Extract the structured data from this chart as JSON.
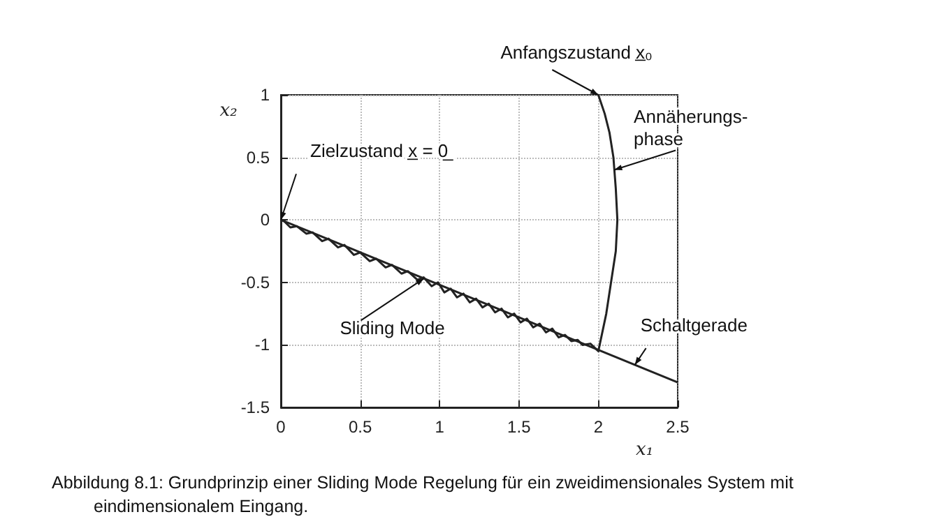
{
  "chart_data": {
    "type": "line",
    "xlabel": "x₁",
    "ylabel": "x₂",
    "xlim": [
      0,
      2.5
    ],
    "xticks": [
      0,
      0.5,
      1,
      1.5,
      2,
      2.5
    ],
    "ylim": [
      -1.5,
      1
    ],
    "yticks": [
      -1.5,
      -1,
      -0.5,
      0,
      0.5,
      1
    ],
    "grid": true,
    "marker": "none",
    "line_style": "solid",
    "series": [
      {
        "color": "#222222",
        "x": [
          2,
          2.04,
          2.07,
          2.095,
          2.11,
          2.12,
          2.11,
          2.08,
          2.05,
          2.0,
          1.95,
          1.9,
          1.87,
          1.83,
          1.79,
          1.75,
          1.71,
          1.67,
          1.63,
          1.59,
          1.55,
          1.51,
          1.47,
          1.43,
          1.39,
          1.35,
          1.31,
          1.27,
          1.23,
          1.19,
          1.15,
          1.11,
          1.07,
          1.03,
          0.99,
          0.95,
          0.9,
          0.86,
          0.8,
          0.76,
          0.7,
          0.66,
          0.6,
          0.56,
          0.5,
          0.46,
          0.4,
          0.36,
          0.3,
          0.26,
          0.2,
          0.16,
          0.1,
          0.06,
          0.02,
          0
        ],
        "values": [
          1,
          0.85,
          0.7,
          0.5,
          0.25,
          0,
          -0.25,
          -0.5,
          -0.75,
          -1.05,
          -0.99,
          -1.0,
          -0.96,
          -0.97,
          -0.92,
          -0.94,
          -0.87,
          -0.9,
          -0.83,
          -0.86,
          -0.79,
          -0.82,
          -0.75,
          -0.78,
          -0.71,
          -0.74,
          -0.67,
          -0.7,
          -0.63,
          -0.66,
          -0.59,
          -0.62,
          -0.55,
          -0.58,
          -0.5,
          -0.53,
          -0.46,
          -0.48,
          -0.41,
          -0.43,
          -0.36,
          -0.38,
          -0.31,
          -0.33,
          -0.26,
          -0.28,
          -0.2,
          -0.22,
          -0.15,
          -0.17,
          -0.1,
          -0.11,
          -0.05,
          -0.06,
          -0.01,
          0
        ]
      },
      {
        "color": "#222222",
        "x": [
          0,
          2.5
        ],
        "values": [
          0,
          -1.3
        ]
      }
    ],
    "annotations": [
      {
        "text": "Anfangszustand x̲₀",
        "x": 2,
        "y": 1
      },
      {
        "text": "Annäherungs-\nphase",
        "x": 2.1,
        "y": 0.4
      },
      {
        "text": "Zielzustand x̲ = 0̲",
        "x": 0,
        "y": 0
      },
      {
        "text": "Sliding Mode",
        "x": 0.9,
        "y": -0.47
      },
      {
        "text": "Schaltgerade",
        "x": 2.23,
        "y": -1.16
      },
      "Abbildung 8.1: Grundprinzip einer Sliding Mode Regelung für ein zweidimensionales System mit eindimensionalem Eingang."
    ]
  }
}
